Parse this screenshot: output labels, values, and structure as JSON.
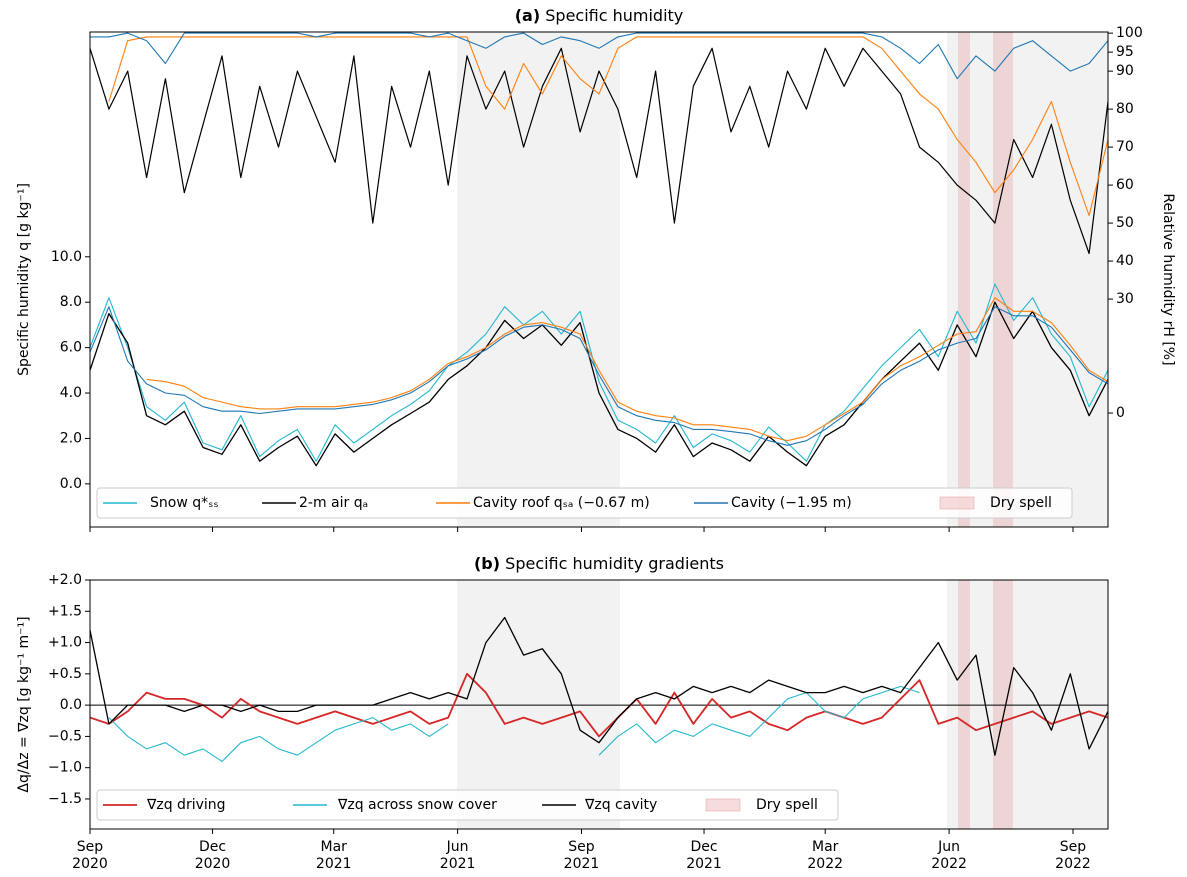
{
  "chart_data": [
    {
      "type": "line",
      "label": "(a)",
      "title": "Specific humidity",
      "ylabel": "Specific humidity q [g kg⁻¹]",
      "y2label": "Relative humidity rH [%]",
      "x": [
        0,
        14,
        28,
        42,
        56,
        70,
        84,
        98,
        112,
        126,
        140,
        154,
        168,
        182,
        196,
        210,
        224,
        238,
        252,
        266,
        280,
        294,
        308,
        322,
        336,
        350,
        364,
        378,
        392,
        406,
        420,
        434,
        448,
        462,
        476,
        490,
        504,
        518,
        532,
        546,
        560,
        574,
        588,
        602,
        616,
        630,
        644,
        658,
        672,
        686,
        700,
        714,
        728,
        742,
        756
      ],
      "xlim": [
        0,
        756
      ],
      "ylim": [
        -1.9,
        19.9
      ],
      "yticks": [
        {
          "value": 0,
          "label": "0.0"
        },
        {
          "value": 2,
          "label": "2.0"
        },
        {
          "value": 4,
          "label": "4.0"
        },
        {
          "value": 6,
          "label": "6.0"
        },
        {
          "value": 8,
          "label": "8.0"
        },
        {
          "value": 10,
          "label": "10.0"
        }
      ],
      "y2lim": [
        -30,
        100.3
      ],
      "y2ticks": [
        0,
        30,
        40,
        50,
        60,
        70,
        80,
        90,
        95,
        100
      ],
      "shaded_spans": [
        [
          272.5,
          393.6
        ],
        [
          636.4,
          756
        ]
      ],
      "dry_spells": [
        [
          644.6,
          653.5
        ],
        [
          670.6,
          685.4
        ]
      ],
      "dry_spell_label": "Dry spell",
      "dry_spell_color": "#e7a9a9",
      "series": [
        {
          "name": "Snow q*ₛₛ",
          "color": "#22b8cf",
          "width": 1.1,
          "values": [
            6.0,
            8.2,
            6.0,
            3.4,
            2.8,
            3.6,
            1.8,
            1.5,
            3.0,
            1.2,
            1.9,
            2.4,
            1.0,
            2.6,
            1.8,
            2.4,
            3.0,
            3.5,
            4.1,
            5.2,
            5.8,
            6.6,
            7.8,
            7.0,
            7.6,
            6.6,
            7.6,
            4.5,
            2.8,
            2.4,
            1.8,
            3.0,
            1.6,
            2.2,
            1.9,
            1.4,
            2.5,
            1.8,
            1.0,
            2.6,
            3.2,
            4.2,
            5.2,
            6.0,
            6.8,
            5.6,
            7.6,
            6.2,
            8.8,
            7.2,
            8.2,
            6.6,
            5.6,
            3.4,
            5.0
          ]
        },
        {
          "name": "2-m air qₐ",
          "color": "#000000",
          "width": 1.3,
          "values": [
            5.0,
            7.5,
            6.2,
            3.0,
            2.6,
            3.2,
            1.6,
            1.3,
            2.6,
            1.0,
            1.6,
            2.1,
            0.8,
            2.2,
            1.4,
            2.0,
            2.6,
            3.1,
            3.6,
            4.6,
            5.2,
            6.0,
            7.2,
            6.4,
            7.0,
            6.1,
            7.1,
            4.0,
            2.4,
            2.0,
            1.4,
            2.6,
            1.2,
            1.8,
            1.5,
            1.0,
            2.1,
            1.4,
            0.8,
            2.1,
            2.6,
            3.6,
            4.6,
            5.4,
            6.2,
            5.0,
            7.0,
            5.6,
            8.0,
            6.4,
            7.6,
            6.0,
            5.0,
            3.0,
            4.6
          ]
        },
        {
          "name": "Cavity roof qₛₐ (−0.67 m)",
          "color": "#ff7f0e",
          "width": 1.1,
          "values": [
            null,
            null,
            null,
            4.6,
            4.5,
            4.3,
            3.8,
            3.6,
            3.4,
            3.3,
            3.3,
            3.4,
            3.4,
            3.4,
            3.5,
            3.6,
            3.8,
            4.1,
            4.6,
            5.3,
            5.6,
            6.0,
            6.6,
            7.0,
            7.1,
            6.9,
            6.6,
            5.0,
            3.6,
            3.2,
            3.0,
            2.9,
            2.6,
            2.6,
            2.5,
            2.4,
            2.1,
            1.9,
            2.1,
            2.6,
            3.1,
            3.6,
            4.6,
            5.2,
            5.6,
            6.1,
            6.6,
            6.7,
            8.2,
            7.6,
            7.6,
            7.1,
            6.1,
            5.0,
            4.5
          ]
        },
        {
          "name": "Cavity (−1.95 m)",
          "color": "#1f77b4",
          "width": 1.1,
          "values": [
            5.8,
            7.8,
            5.4,
            4.4,
            4.0,
            3.9,
            3.4,
            3.2,
            3.2,
            3.1,
            3.2,
            3.3,
            3.3,
            3.3,
            3.4,
            3.5,
            3.7,
            4.0,
            4.5,
            5.2,
            5.5,
            5.9,
            6.5,
            6.9,
            7.0,
            6.8,
            6.4,
            4.8,
            3.4,
            3.0,
            2.8,
            2.7,
            2.4,
            2.4,
            2.3,
            2.2,
            1.9,
            1.7,
            1.9,
            2.4,
            3.0,
            3.5,
            4.4,
            5.0,
            5.4,
            5.9,
            6.2,
            6.4,
            7.8,
            7.4,
            7.4,
            6.9,
            5.9,
            4.9,
            4.4
          ]
        },
        {
          "axis": "y2",
          "color": "#000000",
          "width": 1.2,
          "values": [
            96,
            80,
            90,
            62,
            88,
            58,
            76,
            94,
            62,
            86,
            70,
            90,
            78,
            66,
            94,
            50,
            86,
            70,
            90,
            60,
            94,
            80,
            90,
            70,
            86,
            96,
            74,
            90,
            80,
            62,
            90,
            50,
            86,
            96,
            74,
            86,
            70,
            90,
            80,
            96,
            86,
            96,
            90,
            84,
            70,
            66,
            60,
            56,
            50,
            72,
            62,
            76,
            56,
            42,
            82
          ]
        },
        {
          "axis": "y2",
          "color": "#ff7f0e",
          "width": 1.1,
          "values": [
            null,
            82,
            98,
            99,
            99,
            99,
            99,
            99,
            99,
            99,
            99,
            99,
            99,
            99,
            99,
            99,
            99,
            99,
            99,
            99,
            99,
            86,
            80,
            92,
            84,
            94,
            88,
            84,
            96,
            99,
            99,
            99,
            99,
            99,
            99,
            99,
            99,
            99,
            99,
            99,
            99,
            99,
            96,
            90,
            84,
            80,
            72,
            66,
            58,
            64,
            72,
            82,
            66,
            52,
            72
          ]
        },
        {
          "axis": "y2",
          "color": "#1f77b4",
          "width": 1.1,
          "values": [
            99,
            99,
            100,
            98,
            92,
            100,
            100,
            100,
            100,
            100,
            100,
            100,
            99,
            100,
            100,
            100,
            100,
            100,
            99,
            100,
            98,
            96,
            99,
            100,
            97,
            99,
            98,
            96,
            99,
            100,
            100,
            100,
            100,
            100,
            100,
            100,
            100,
            100,
            100,
            100,
            100,
            100,
            99,
            96,
            92,
            97,
            88,
            94,
            90,
            96,
            98,
            94,
            90,
            92,
            98
          ]
        }
      ]
    },
    {
      "type": "line",
      "label": "(b)",
      "title": "Specific humidity gradients",
      "ylabel": "Δq/Δz = ∇zq [g kg⁻¹ m⁻¹]",
      "x": [
        0,
        14,
        28,
        42,
        56,
        70,
        84,
        98,
        112,
        126,
        140,
        154,
        168,
        182,
        196,
        210,
        224,
        238,
        252,
        266,
        280,
        294,
        308,
        322,
        336,
        350,
        364,
        378,
        392,
        406,
        420,
        434,
        448,
        462,
        476,
        490,
        504,
        518,
        532,
        546,
        560,
        574,
        588,
        602,
        616,
        630,
        644,
        658,
        672,
        686,
        700,
        714,
        728,
        742,
        756
      ],
      "xlim": [
        0,
        756
      ],
      "xticks": [
        {
          "value": 0,
          "label": [
            "Sep",
            "2020"
          ]
        },
        {
          "value": 91,
          "label": [
            "Dec",
            "2020"
          ]
        },
        {
          "value": 181,
          "label": [
            "Mar",
            "2021"
          ]
        },
        {
          "value": 273,
          "label": [
            "Jun",
            "2021"
          ]
        },
        {
          "value": 365,
          "label": [
            "Sep",
            "2021"
          ]
        },
        {
          "value": 456,
          "label": [
            "Dec",
            "2021"
          ]
        },
        {
          "value": 546,
          "label": [
            "Mar",
            "2022"
          ]
        },
        {
          "value": 638,
          "label": [
            "Jun",
            "2022"
          ]
        },
        {
          "value": 730,
          "label": [
            "Sep",
            "2022"
          ]
        }
      ],
      "ylim": [
        -1.98,
        2.0
      ],
      "yticks": [
        {
          "value": 2,
          "label": "+2.0"
        },
        {
          "value": 1.5,
          "label": "+1.5"
        },
        {
          "value": 1,
          "label": "+1.0"
        },
        {
          "value": 0.5,
          "label": "+0.5"
        },
        {
          "value": 0,
          "label": "0.0"
        },
        {
          "value": -0.5,
          "label": "−0.5"
        },
        {
          "value": -1,
          "label": "−1.0"
        },
        {
          "value": -1.5,
          "label": "−1.5"
        }
      ],
      "zero_line": true,
      "shaded_spans": [
        [
          272.5,
          393.6
        ],
        [
          636.4,
          756
        ]
      ],
      "dry_spells": [
        [
          644.6,
          653.5
        ],
        [
          670.6,
          685.4
        ]
      ],
      "dry_spell_label": "Dry spell",
      "dry_spell_color": "#e7a9a9",
      "series": [
        {
          "name": "∇zq driving",
          "color": "#d62728",
          "width": 1.8,
          "values": [
            -0.2,
            -0.3,
            -0.1,
            0.2,
            0.1,
            0.1,
            0.0,
            -0.2,
            0.1,
            -0.1,
            -0.2,
            -0.3,
            -0.2,
            -0.1,
            -0.2,
            -0.3,
            -0.2,
            -0.1,
            -0.3,
            -0.2,
            0.5,
            0.2,
            -0.3,
            -0.2,
            -0.3,
            -0.2,
            -0.1,
            -0.5,
            -0.2,
            0.1,
            -0.3,
            0.2,
            -0.3,
            0.1,
            -0.2,
            -0.1,
            -0.3,
            -0.4,
            -0.2,
            -0.1,
            -0.2,
            -0.3,
            -0.2,
            0.1,
            0.4,
            -0.3,
            -0.2,
            -0.4,
            -0.3,
            -0.2,
            -0.1,
            -0.3,
            -0.2,
            -0.1,
            -0.2
          ]
        },
        {
          "name": "∇zq across snow cover",
          "color": "#22b8cf",
          "width": 1.1,
          "values": [
            null,
            -0.2,
            -0.5,
            -0.7,
            -0.6,
            -0.8,
            -0.7,
            -0.9,
            -0.6,
            -0.5,
            -0.7,
            -0.8,
            -0.6,
            -0.4,
            -0.3,
            -0.2,
            -0.4,
            -0.3,
            -0.5,
            -0.3,
            null,
            null,
            null,
            null,
            null,
            null,
            null,
            -0.8,
            -0.5,
            -0.3,
            -0.6,
            -0.4,
            -0.5,
            -0.3,
            -0.4,
            -0.5,
            -0.2,
            0.1,
            0.2,
            -0.1,
            -0.2,
            0.1,
            0.2,
            0.3,
            0.2,
            null,
            null,
            null,
            null,
            null,
            null,
            null,
            null,
            null,
            null
          ]
        },
        {
          "name": "∇zq cavity",
          "color": "#000000",
          "width": 1.3,
          "values": [
            1.2,
            -0.3,
            0.0,
            0.0,
            0.0,
            -0.1,
            0.0,
            0.0,
            -0.1,
            0.0,
            -0.1,
            -0.1,
            0.0,
            0.0,
            0.0,
            0.0,
            0.1,
            0.2,
            0.1,
            0.2,
            0.1,
            1.0,
            1.4,
            0.8,
            0.9,
            0.5,
            -0.4,
            -0.6,
            -0.2,
            0.1,
            0.2,
            0.1,
            0.3,
            0.2,
            0.3,
            0.2,
            0.4,
            0.3,
            0.2,
            0.2,
            0.3,
            0.2,
            0.3,
            0.2,
            0.6,
            1.0,
            0.4,
            0.8,
            -0.8,
            0.6,
            0.2,
            -0.4,
            0.5,
            -0.7,
            -0.1
          ]
        }
      ]
    }
  ]
}
